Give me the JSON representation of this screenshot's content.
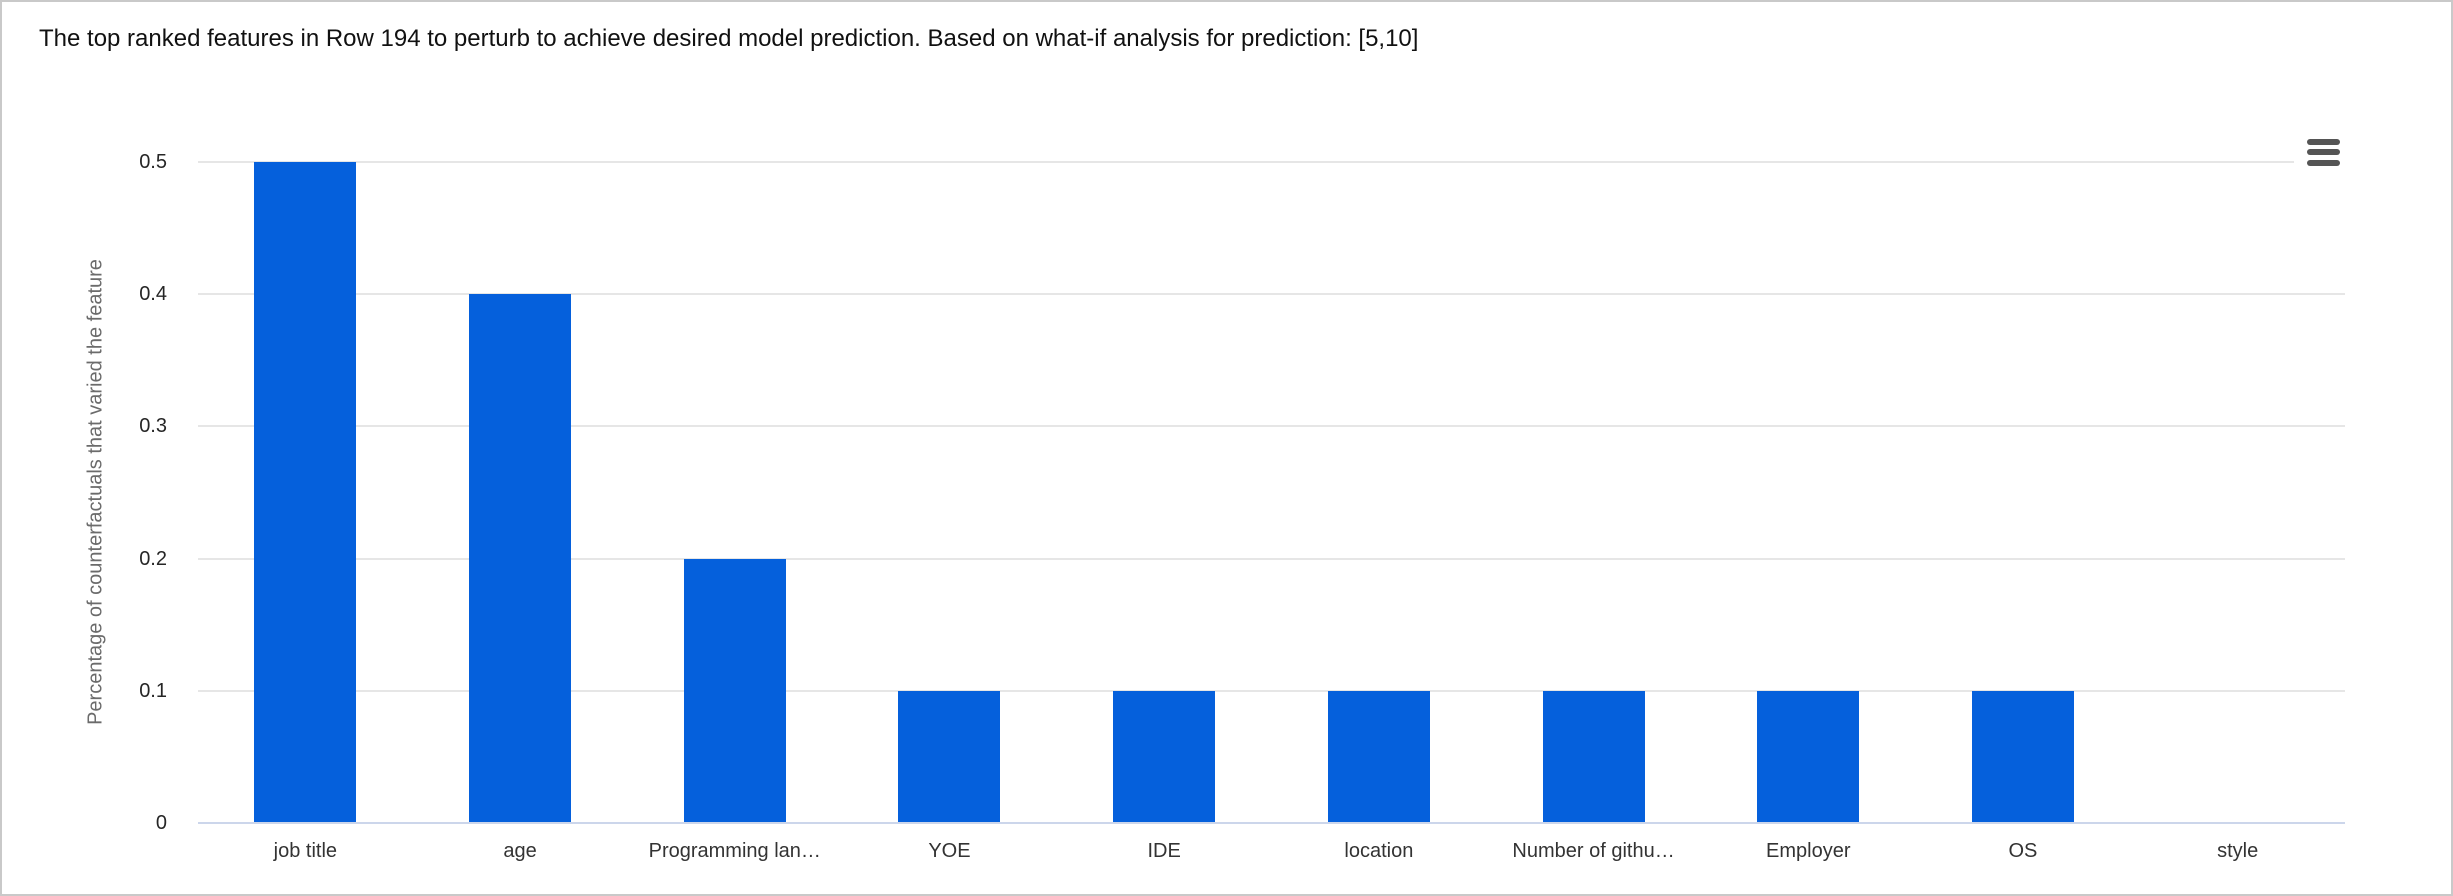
{
  "header": {
    "title": "The top ranked features in Row 194 to perturb to achieve desired model prediction. Based on what-if analysis for prediction: [5,10]"
  },
  "toolbar": {
    "context_menu_icon": "hamburger-menu-icon",
    "icon_color": "#555555"
  },
  "chart_data": {
    "type": "bar",
    "title": "The top ranked features in Row 194 to perturb to achieve desired model prediction. Based on what-if analysis for prediction: [5,10]",
    "categories": [
      "job title",
      "age",
      "Programming lan…",
      "YOE",
      "IDE",
      "location",
      "Number of githu…",
      "Employer",
      "OS",
      "style"
    ],
    "values": [
      0.5,
      0.4,
      0.2,
      0.1,
      0.1,
      0.1,
      0.1,
      0.1,
      0.1,
      0
    ],
    "xlabel": "",
    "ylabel": "Percentage of counterfactuals that varied the feature",
    "ylim": [
      0,
      0.5
    ],
    "ytick_values": [
      0,
      0.1,
      0.2,
      0.3,
      0.4,
      0.5
    ],
    "ytick_labels": [
      "0",
      "0.1",
      "0.2",
      "0.3",
      "0.4",
      "0.5"
    ],
    "grid": true,
    "legend_position": "none",
    "colors": {
      "bar": "#0560dc",
      "gridline": "#e6e6e6",
      "axis_line": "#ccd6eb",
      "tick_label": "#262626",
      "axis_title": "#6b6b6b",
      "title_text": "#111111"
    }
  }
}
